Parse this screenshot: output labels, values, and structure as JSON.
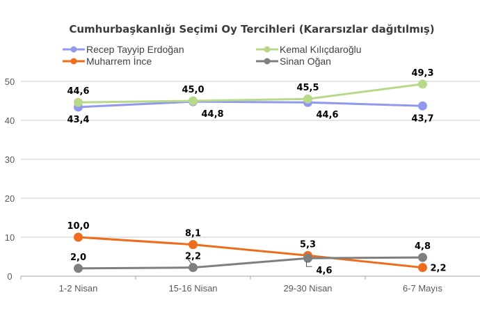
{
  "chart_data": {
    "type": "line",
    "title": "Cumhurbaşkanlığı Seçimi Oy Tercihleri (Kararsızlar dağıtılmış)",
    "xlabel": "",
    "ylabel": "",
    "categories": [
      "1-2 Nisan",
      "15-16 Nisan",
      "29-30 Nisan",
      "6-7 Mayıs"
    ],
    "ylim": [
      0,
      50
    ],
    "yticks": [
      0,
      10,
      20,
      30,
      40,
      50
    ],
    "grid": true,
    "legend_position": "top",
    "series": [
      {
        "name": "Recep Tayyip Erdoğan",
        "color": "#9199ef",
        "values": [
          43.4,
          44.8,
          44.6,
          43.7
        ],
        "labels": [
          "43,4",
          "44,8",
          "44,6",
          "43,7"
        ],
        "label_pos": [
          "below",
          "below-right",
          "below-right",
          "below"
        ]
      },
      {
        "name": "Kemal Kılıçdaroğlu",
        "color": "#b8d98a",
        "values": [
          44.6,
          45.0,
          45.5,
          49.3
        ],
        "labels": [
          "44,6",
          "45,0",
          "45,5",
          "49,3"
        ],
        "label_pos": [
          "above",
          "above",
          "above",
          "above"
        ]
      },
      {
        "name": "Muharrem İnce",
        "color": "#ee6d1c",
        "values": [
          10.0,
          8.1,
          5.3,
          2.2
        ],
        "labels": [
          "10,0",
          "8,1",
          "5,3",
          "2,2"
        ],
        "label_pos": [
          "above",
          "above",
          "above",
          "right"
        ]
      },
      {
        "name": "Sinan Oğan",
        "color": "#7f7f7f",
        "values": [
          2.0,
          2.2,
          4.6,
          4.8
        ],
        "labels": [
          "2,0",
          "2,2",
          "4,6",
          "4,8"
        ],
        "label_pos": [
          "above",
          "above",
          "below-right",
          "above"
        ]
      }
    ]
  }
}
